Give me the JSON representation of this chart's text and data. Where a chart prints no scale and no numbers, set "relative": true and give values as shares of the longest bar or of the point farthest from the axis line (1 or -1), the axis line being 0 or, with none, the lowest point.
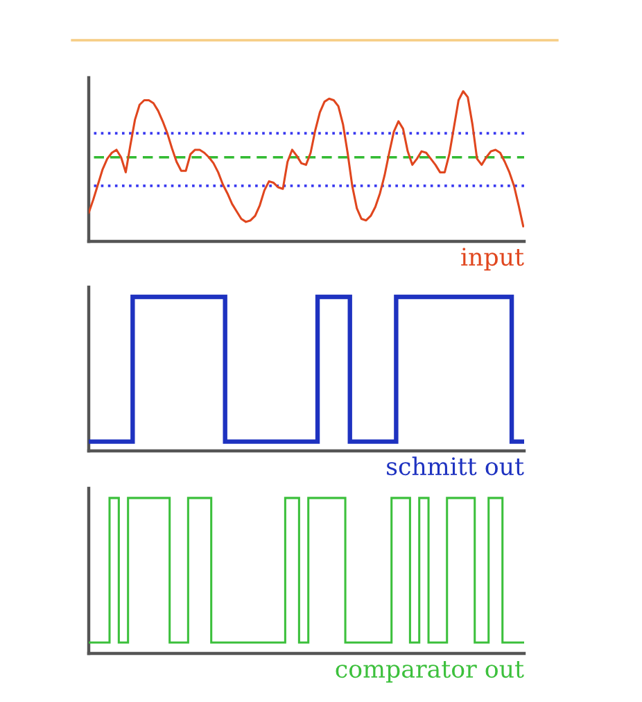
{
  "chart_data": [
    {
      "type": "line",
      "xlabel": "input",
      "relative": true,
      "categories": [
        null,
        null,
        null,
        null,
        null,
        null,
        null,
        null,
        null,
        null,
        null,
        null,
        null,
        null,
        null,
        null,
        null,
        null,
        null,
        null,
        null,
        null,
        null,
        null,
        null,
        null,
        null,
        null,
        null,
        null,
        null,
        null,
        null,
        null,
        null,
        null,
        null,
        null,
        null,
        null,
        null,
        null,
        null,
        null,
        null,
        null,
        null,
        null,
        null,
        null,
        null,
        null,
        null,
        null,
        null,
        null,
        null,
        null,
        null,
        null,
        null,
        null,
        null,
        null,
        null,
        null,
        null,
        null,
        null,
        null,
        null,
        null,
        null,
        null,
        null,
        null,
        null,
        null,
        null,
        null,
        null,
        null,
        null,
        null,
        null,
        null,
        null,
        null,
        null,
        null,
        null,
        null,
        null,
        null,
        null
      ],
      "series": [
        {
          "color": "#e0461e",
          "values": [
            0.19,
            0.28,
            0.38,
            0.48,
            0.55,
            0.59,
            0.61,
            0.56,
            0.46,
            0.64,
            0.81,
            0.91,
            0.94,
            0.94,
            0.92,
            0.87,
            0.8,
            0.72,
            0.62,
            0.53,
            0.47,
            0.47,
            0.58,
            0.61,
            0.61,
            0.59,
            0.56,
            0.52,
            0.46,
            0.38,
            0.32,
            0.25,
            0.2,
            0.15,
            0.13,
            0.14,
            0.17,
            0.24,
            0.34,
            0.4,
            0.39,
            0.36,
            0.35,
            0.53,
            0.61,
            0.57,
            0.52,
            0.51,
            0.59,
            0.74,
            0.86,
            0.93,
            0.95,
            0.94,
            0.9,
            0.78,
            0.59,
            0.37,
            0.22,
            0.15,
            0.14,
            0.17,
            0.23,
            0.32,
            0.44,
            0.59,
            0.73,
            0.8,
            0.75,
            0.6,
            0.51,
            0.55,
            0.6,
            0.59,
            0.55,
            0.51,
            0.46,
            0.46,
            0.58,
            0.76,
            0.94,
            1.0,
            0.96,
            0.78,
            0.55,
            0.51,
            0.56,
            0.6,
            0.61,
            0.59,
            0.53,
            0.46,
            0.37,
            0.24,
            0.1
          ]
        }
      ],
      "ref_lines": [
        {
          "axis": "y",
          "value": 0.72,
          "color": "#3a3af0",
          "line_style": "dotted"
        },
        {
          "axis": "y",
          "value": 0.56,
          "color": "#33bb33",
          "line_style": "dashed"
        },
        {
          "axis": "y",
          "value": 0.37,
          "color": "#3a3af0",
          "line_style": "dotted"
        }
      ]
    },
    {
      "type": "step",
      "xlabel": "schmitt out",
      "relative": true,
      "categories": [
        null,
        null,
        null,
        null,
        null,
        null,
        null,
        null,
        null,
        null,
        null,
        null,
        null,
        null,
        null,
        null,
        null,
        null,
        null,
        null,
        null,
        null,
        null,
        null,
        null,
        null,
        null,
        null,
        null,
        null,
        null,
        null,
        null,
        null,
        null,
        null,
        null,
        null,
        null,
        null,
        null,
        null,
        null,
        null,
        null,
        null,
        null,
        null,
        null,
        null,
        null,
        null,
        null,
        null,
        null,
        null,
        null,
        null,
        null,
        null,
        null,
        null,
        null,
        null,
        null,
        null,
        null,
        null,
        null,
        null,
        null,
        null,
        null,
        null,
        null,
        null,
        null,
        null,
        null,
        null,
        null,
        null,
        null,
        null,
        null,
        null,
        null,
        null,
        null,
        null,
        null,
        null,
        null,
        null,
        null
      ],
      "series": [
        {
          "color": "#1e32c0",
          "values": [
            0.06,
            0.06,
            0.06,
            0.06,
            0.06,
            0.06,
            0.06,
            0.06,
            0.06,
            0.06,
            1,
            1,
            1,
            1,
            1,
            1,
            1,
            1,
            1,
            1,
            1,
            1,
            1,
            1,
            1,
            1,
            1,
            1,
            1,
            1,
            0.06,
            0.06,
            0.06,
            0.06,
            0.06,
            0.06,
            0.06,
            0.06,
            0.06,
            0.06,
            0.06,
            0.06,
            0.06,
            0.06,
            0.06,
            0.06,
            0.06,
            0.06,
            0.06,
            0.06,
            1,
            1,
            1,
            1,
            1,
            1,
            1,
            0.06,
            0.06,
            0.06,
            0.06,
            0.06,
            0.06,
            0.06,
            0.06,
            0.06,
            0.06,
            1,
            1,
            1,
            1,
            1,
            1,
            1,
            1,
            1,
            1,
            1,
            1,
            1,
            1,
            1,
            1,
            1,
            1,
            1,
            1,
            1,
            1,
            1,
            1,
            1,
            0.06,
            0.06,
            0.06
          ]
        }
      ]
    },
    {
      "type": "step",
      "xlabel": "comparator out",
      "relative": true,
      "categories": [
        null,
        null,
        null,
        null,
        null,
        null,
        null,
        null,
        null,
        null,
        null,
        null,
        null,
        null,
        null,
        null,
        null,
        null,
        null,
        null,
        null,
        null,
        null,
        null,
        null,
        null,
        null,
        null,
        null,
        null,
        null,
        null,
        null,
        null,
        null,
        null,
        null,
        null,
        null,
        null,
        null,
        null,
        null,
        null,
        null,
        null,
        null,
        null,
        null,
        null,
        null,
        null,
        null,
        null,
        null,
        null,
        null,
        null,
        null,
        null,
        null,
        null,
        null,
        null,
        null,
        null,
        null,
        null,
        null,
        null,
        null,
        null,
        null,
        null,
        null,
        null,
        null,
        null,
        null,
        null,
        null,
        null,
        null,
        null,
        null,
        null,
        null,
        null,
        null,
        null,
        null,
        null,
        null,
        null,
        null
      ],
      "series": [
        {
          "color": "#3cc03c",
          "values": [
            0.07,
            0.07,
            0.07,
            0.07,
            0.07,
            1,
            1,
            0.07,
            0.07,
            1,
            1,
            1,
            1,
            1,
            1,
            1,
            1,
            1,
            0.07,
            0.07,
            0.07,
            0.07,
            1,
            1,
            1,
            1,
            1,
            0.07,
            0.07,
            0.07,
            0.07,
            0.07,
            0.07,
            0.07,
            0.07,
            0.07,
            0.07,
            0.07,
            0.07,
            0.07,
            0.07,
            0.07,
            0.07,
            1,
            1,
            1,
            0.07,
            0.07,
            1,
            1,
            1,
            1,
            1,
            1,
            1,
            1,
            0.07,
            0.07,
            0.07,
            0.07,
            0.07,
            0.07,
            0.07,
            0.07,
            0.07,
            0.07,
            1,
            1,
            1,
            1,
            0.07,
            0.07,
            1,
            1,
            0.07,
            0.07,
            0.07,
            0.07,
            1,
            1,
            1,
            1,
            1,
            1,
            0.07,
            0.07,
            0.07,
            1,
            1,
            1,
            0.07,
            0.07,
            0.07,
            0.07,
            0.07
          ]
        }
      ]
    }
  ]
}
